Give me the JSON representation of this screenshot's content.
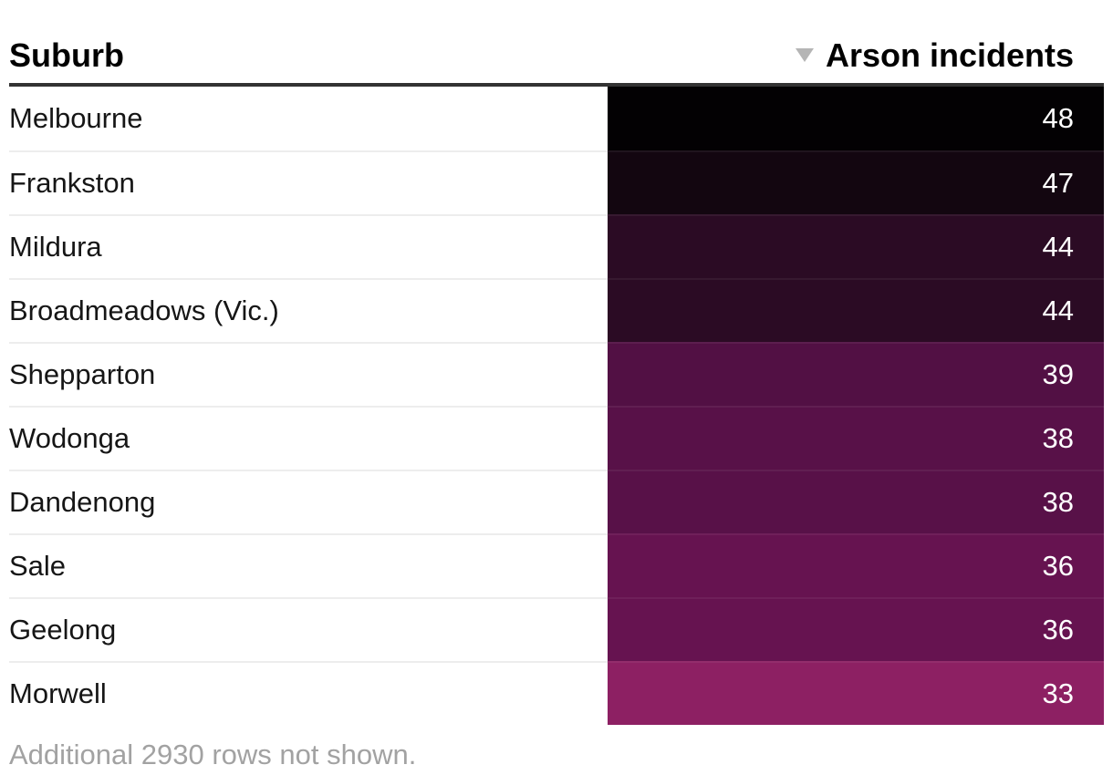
{
  "chart_data": {
    "type": "table",
    "columns": [
      {
        "key": "suburb",
        "label": "Suburb"
      },
      {
        "key": "incidents",
        "label": "Arson incidents",
        "sort": "descending"
      }
    ],
    "rows": [
      {
        "suburb": "Melbourne",
        "incidents": "48",
        "color": "#030103"
      },
      {
        "suburb": "Frankston",
        "incidents": "47",
        "color": "#130610"
      },
      {
        "suburb": "Mildura",
        "incidents": "44",
        "color": "#2b0b24"
      },
      {
        "suburb": "Broadmeadows (Vic.)",
        "incidents": "44",
        "color": "#2b0b24"
      },
      {
        "suburb": "Shepparton",
        "incidents": "39",
        "color": "#521044"
      },
      {
        "suburb": "Wodonga",
        "incidents": "38",
        "color": "#581148"
      },
      {
        "suburb": "Dandenong",
        "incidents": "38",
        "color": "#581148"
      },
      {
        "suburb": "Sale",
        "incidents": "36",
        "color": "#661350"
      },
      {
        "suburb": "Geelong",
        "incidents": "36",
        "color": "#661350"
      },
      {
        "suburb": "Morwell",
        "incidents": "33",
        "color": "#8d2063"
      }
    ],
    "value_range_shown": [
      33,
      48
    ],
    "color_scale": {
      "style": "sequential",
      "high_value_color": "#000000",
      "low_value_color": "#8d2063",
      "note": "darker cell = more incidents"
    }
  },
  "header": {
    "suburb_label": "Suburb",
    "incidents_label": "Arson incidents",
    "sort_direction": "descending",
    "sort_icon": "triangle-down"
  },
  "footer": {
    "note": "Additional 2930 rows not shown."
  },
  "colors": {
    "header_text": "#000000",
    "header_border": "#333333",
    "row_text": "#161616",
    "value_text": "#ffffff",
    "row_separator": "#ededed",
    "sort_icon": "#b5b5b5",
    "footer_text": "#a2a2a2",
    "background": "#ffffff"
  }
}
